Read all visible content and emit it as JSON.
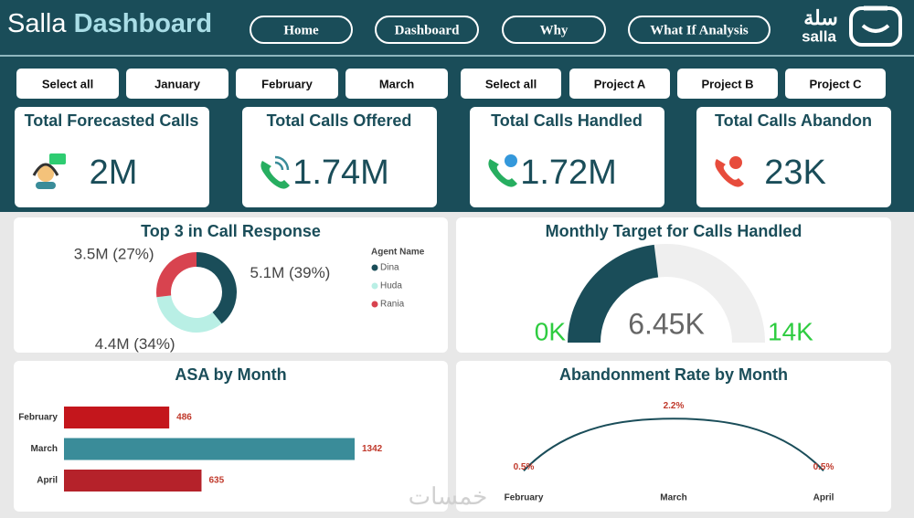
{
  "header": {
    "title_plain": "Salla",
    "title_bold": "Dashboard",
    "nav": [
      "Home",
      "Dashboard",
      "Why",
      "What If Analysis"
    ],
    "logo_text": "سلة",
    "logo_sub": "salla"
  },
  "filters": {
    "months": [
      "Select all",
      "January",
      "February",
      "March"
    ],
    "projects": [
      "Select all",
      "Project A",
      "Project B",
      "Project C"
    ]
  },
  "kpis": [
    {
      "title": "Total Forecasted Calls",
      "value": "2M"
    },
    {
      "title": "Total Calls Offered",
      "value": "1.74M"
    },
    {
      "title": "Total Calls Handled",
      "value": "1.72M"
    },
    {
      "title": "Total Calls Abandon",
      "value": "23K"
    }
  ],
  "chart_data": [
    {
      "type": "pie",
      "title": "Top 3 in Call Response",
      "legend_title": "Agent Name",
      "categories": [
        "Dina",
        "Huda",
        "Rania"
      ],
      "values": [
        5100000,
        4400000,
        3500000
      ],
      "value_labels": [
        "5.1M (39%)",
        "4.4M (34%)",
        "3.5M (27%)"
      ],
      "colors": [
        "#1a4d59",
        "#b9efe5",
        "#d8434f"
      ]
    },
    {
      "type": "gauge",
      "title": "Monthly Target for Calls Handled",
      "value": 6450,
      "value_label": "6.45K",
      "ylim": [
        0,
        14000
      ],
      "yticks": [
        {
          "value": 0,
          "label": "0K"
        },
        {
          "value": 14000,
          "label": "14K"
        }
      ],
      "color": "#1a4d59"
    },
    {
      "type": "bar",
      "title": "ASA by Month",
      "categories": [
        "February",
        "March",
        "April"
      ],
      "values": [
        486,
        1342,
        635
      ],
      "colors": [
        "#c4161c",
        "#3a8c99",
        "#b5222a"
      ]
    },
    {
      "type": "line",
      "title": "Abandonment Rate by Month",
      "categories": [
        "February",
        "March",
        "April"
      ],
      "values": [
        0.5,
        2.2,
        0.5
      ],
      "value_labels": [
        "0.5%",
        "2.2%",
        "0.5%"
      ],
      "color": "#1a4d59"
    }
  ],
  "watermark": "خمسات"
}
